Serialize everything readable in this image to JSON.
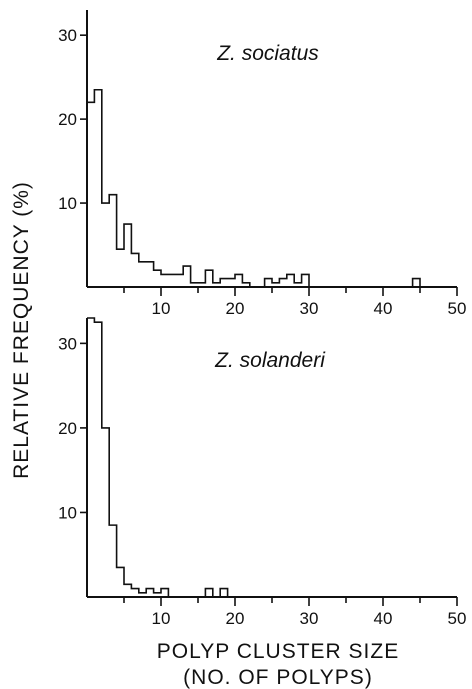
{
  "figure": {
    "ylabel": "RELATIVE FREQUENCY (%)",
    "xlabel_line1": "POLYP CLUSTER SIZE",
    "xlabel_line2": "(NO. OF POLYPS)",
    "ink_color": "#111111"
  },
  "chart_data": [
    {
      "type": "bar",
      "title": "Z. sociatus",
      "xlabel": "POLYP CLUSTER SIZE (NO. OF POLYPS)",
      "ylabel": "RELATIVE FREQUENCY (%)",
      "xlim": [
        0,
        50
      ],
      "ylim": [
        0,
        33
      ],
      "x_ticks": [
        10,
        20,
        30,
        40,
        50
      ],
      "y_ticks": [
        10,
        20,
        30
      ],
      "grid": false,
      "x": [
        1,
        2,
        3,
        4,
        5,
        6,
        7,
        8,
        9,
        10,
        11,
        12,
        13,
        14,
        15,
        16,
        17,
        18,
        19,
        20,
        21,
        22,
        23,
        24,
        25,
        26,
        27,
        28,
        29,
        30,
        31,
        32,
        33,
        34,
        35,
        36,
        37,
        38,
        39,
        40,
        41,
        42,
        43,
        44,
        45,
        46,
        47,
        48,
        49,
        50
      ],
      "values": [
        22,
        23.5,
        10,
        11,
        4.5,
        7.5,
        4,
        3,
        3,
        2,
        1.5,
        1.5,
        1.5,
        2.5,
        0.5,
        0.5,
        2,
        0.5,
        1,
        1,
        1.5,
        0.5,
        0,
        0,
        1,
        0.5,
        1,
        1.5,
        0.5,
        1.5,
        0,
        0,
        0,
        0,
        0,
        0,
        0,
        0,
        0,
        0,
        0,
        0,
        0,
        0,
        1,
        0,
        0,
        0,
        0,
        0
      ]
    },
    {
      "type": "bar",
      "title": "Z. solanderi",
      "xlabel": "POLYP CLUSTER SIZE (NO. OF POLYPS)",
      "ylabel": "RELATIVE FREQUENCY (%)",
      "xlim": [
        0,
        50
      ],
      "ylim": [
        0,
        33
      ],
      "x_ticks": [
        10,
        20,
        30,
        40,
        50
      ],
      "y_ticks": [
        10,
        20,
        30
      ],
      "grid": false,
      "x": [
        1,
        2,
        3,
        4,
        5,
        6,
        7,
        8,
        9,
        10,
        11,
        12,
        13,
        14,
        15,
        16,
        17,
        18,
        19,
        20,
        21,
        22,
        23,
        24,
        25,
        26,
        27,
        28,
        29,
        30,
        31,
        32,
        33,
        34,
        35,
        36,
        37,
        38,
        39,
        40,
        41,
        42,
        43,
        44,
        45,
        46,
        47,
        48,
        49,
        50
      ],
      "values": [
        33,
        32.5,
        20,
        8.5,
        3.5,
        1.5,
        1,
        0.5,
        1,
        0.5,
        1,
        0,
        0,
        0,
        0,
        0,
        1,
        0,
        1,
        0,
        0,
        0,
        0,
        0,
        0,
        0,
        0,
        0,
        0,
        0,
        0,
        0,
        0,
        0,
        0,
        0,
        0,
        0,
        0,
        0,
        0,
        0,
        0,
        0,
        0,
        0,
        0,
        0,
        0,
        0
      ]
    }
  ]
}
